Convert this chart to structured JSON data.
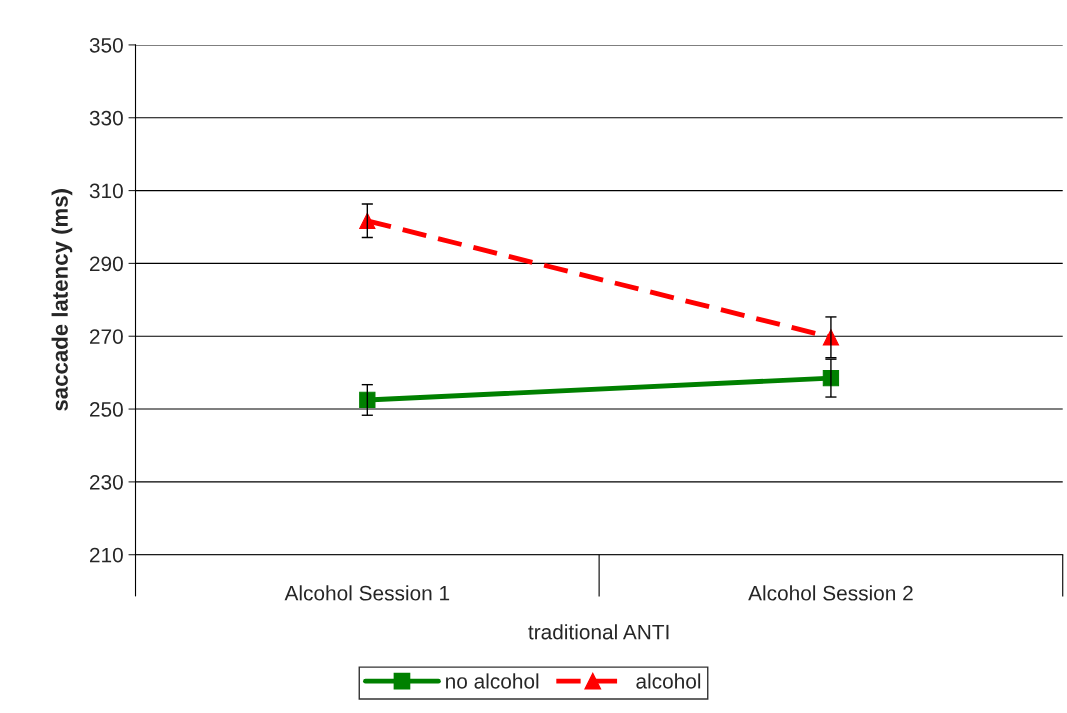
{
  "chart_data": {
    "type": "line",
    "ylabel": "saccade latency (ms)",
    "xlabel": "traditional ANTI",
    "categories": [
      "Alcohol Session 1",
      "Alcohol Session 2"
    ],
    "series": [
      {
        "name": "no alcohol",
        "color": "#008000",
        "values": [
          252.5,
          258.5
        ],
        "errors": [
          4.2,
          5.2
        ],
        "marker": "square",
        "line_style": "solid"
      },
      {
        "name": "alcohol",
        "color": "#ff0000",
        "values": [
          301.7,
          269.7
        ],
        "errors": [
          4.6,
          5.6
        ],
        "marker": "triangle",
        "line_style": "dashed"
      }
    ],
    "ylim": [
      210,
      350
    ],
    "yticks": [
      210,
      230,
      250,
      270,
      290,
      310,
      330,
      350
    ],
    "grid": "y",
    "legend": "bottom"
  }
}
